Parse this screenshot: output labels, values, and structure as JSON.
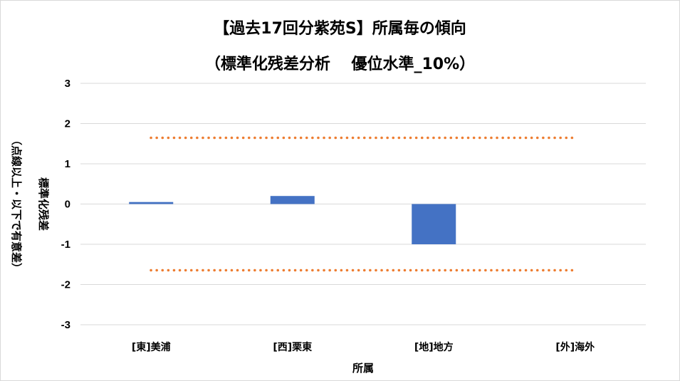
{
  "chart_data": {
    "type": "bar",
    "title": "【過去17回分紫苑S】所属毎の傾向",
    "subtitle": "（標準化残差分析　 優位水準_10%）",
    "xlabel": "所属",
    "ylabel_lines": [
      "（点線以上・以下で有意差）",
      "標準化残差"
    ],
    "categories": [
      "[東]美浦",
      "[西]栗東",
      "[地]地方",
      "[外]海外"
    ],
    "values": [
      0.05,
      0.2,
      -1.0,
      0
    ],
    "ylim": [
      -3,
      3
    ],
    "yticks": [
      3,
      2,
      1,
      0,
      -1,
      -2,
      -3
    ],
    "thresholds": [
      1.645,
      -1.645
    ],
    "grid": true,
    "legend": "none",
    "colors": {
      "bar": "#4472c4",
      "threshold": "#ed7d31",
      "grid": "#d9d9d9"
    }
  }
}
